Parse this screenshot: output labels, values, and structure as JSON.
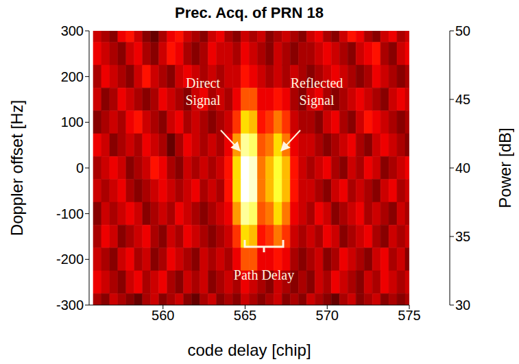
{
  "chart_data": {
    "type": "heatmap",
    "title": "Prec. Acq. of PRN 18",
    "x_label": "code delay [chip]",
    "y_label": "Doppler offset [Hz]",
    "xlim": [
      555.5,
      575
    ],
    "xticks": [
      560,
      565,
      570,
      575
    ],
    "ylim": [
      -300,
      300
    ],
    "yticks": [
      -300,
      -200,
      -100,
      0,
      100,
      200,
      300
    ],
    "x": [
      556,
      556.5,
      557,
      557.5,
      558,
      558.5,
      559,
      559.5,
      560,
      560.5,
      561,
      561.5,
      562,
      562.5,
      563,
      563.5,
      564,
      564.5,
      565,
      565.5,
      566,
      566.5,
      567,
      567.5,
      568,
      568.5,
      569,
      569.5,
      570,
      570.5,
      571,
      571.5,
      572,
      572.5,
      573,
      573.5,
      574,
      574.5,
      575
    ],
    "y": [
      300,
      250,
      200,
      150,
      100,
      50,
      0,
      -50,
      -100,
      -150,
      -200,
      -250,
      -300
    ],
    "values": [
      [
        36,
        35,
        34,
        37,
        38,
        36,
        34,
        33,
        35,
        37,
        38,
        36,
        35,
        34,
        36,
        37,
        35,
        34,
        36,
        35,
        36,
        34,
        35,
        36,
        35,
        34,
        36,
        37,
        35,
        34,
        36,
        38,
        37,
        35,
        34,
        36,
        37,
        35,
        36
      ],
      [
        37,
        36,
        35,
        34,
        36,
        37,
        35,
        34,
        36,
        38,
        37,
        35,
        34,
        35,
        37,
        36,
        36,
        35,
        37,
        36,
        35,
        34,
        36,
        35,
        34,
        35,
        35,
        36,
        37,
        36,
        35,
        34,
        36,
        37,
        38,
        35,
        34,
        36,
        37
      ],
      [
        35,
        37,
        36,
        35,
        34,
        36,
        38,
        36,
        35,
        34,
        36,
        37,
        36,
        35,
        36,
        35,
        36,
        36,
        38,
        37,
        36,
        35,
        36,
        35,
        36,
        35,
        34,
        35,
        36,
        37,
        36,
        35,
        34,
        35,
        37,
        36,
        35,
        34,
        35
      ],
      [
        36,
        34,
        35,
        37,
        36,
        35,
        34,
        35,
        37,
        36,
        35,
        34,
        36,
        37,
        35,
        36,
        35,
        37,
        40,
        40,
        37,
        37,
        38,
        37,
        35,
        34,
        36,
        37,
        35,
        34,
        35,
        36,
        37,
        36,
        35,
        34,
        36,
        37,
        36
      ],
      [
        34,
        35,
        36,
        35,
        37,
        38,
        36,
        35,
        34,
        36,
        37,
        35,
        36,
        35,
        34,
        35,
        36,
        39,
        44,
        43,
        38,
        39,
        41,
        39,
        36,
        35,
        35,
        34,
        36,
        37,
        35,
        34,
        36,
        38,
        37,
        36,
        35,
        34,
        35
      ],
      [
        37,
        36,
        34,
        35,
        36,
        35,
        37,
        36,
        35,
        33,
        35,
        37,
        36,
        35,
        36,
        35,
        37,
        42,
        48,
        47,
        40,
        41,
        44,
        41,
        37,
        36,
        36,
        35,
        34,
        35,
        36,
        37,
        35,
        34,
        36,
        37,
        36,
        35,
        34
      ],
      [
        35,
        36,
        37,
        36,
        34,
        35,
        36,
        38,
        37,
        35,
        34,
        36,
        35,
        36,
        35,
        36,
        38,
        44,
        50,
        49,
        41,
        43,
        46,
        43,
        38,
        36,
        35,
        36,
        37,
        35,
        34,
        36,
        35,
        37,
        36,
        34,
        35,
        36,
        37
      ],
      [
        36,
        35,
        36,
        37,
        35,
        34,
        35,
        36,
        37,
        36,
        35,
        36,
        37,
        35,
        36,
        35,
        38,
        44,
        50,
        49,
        41,
        43,
        46,
        43,
        38,
        36,
        36,
        35,
        34,
        36,
        37,
        35,
        36,
        35,
        34,
        36,
        37,
        35,
        36
      ],
      [
        34,
        36,
        35,
        36,
        37,
        36,
        34,
        35,
        36,
        35,
        37,
        36,
        35,
        34,
        35,
        36,
        37,
        42,
        48,
        47,
        40,
        41,
        44,
        41,
        37,
        36,
        35,
        37,
        36,
        34,
        35,
        36,
        37,
        35,
        36,
        35,
        34,
        36,
        35
      ],
      [
        35,
        37,
        36,
        34,
        35,
        36,
        37,
        35,
        34,
        36,
        35,
        37,
        36,
        35,
        34,
        35,
        36,
        39,
        44,
        43,
        38,
        39,
        41,
        39,
        36,
        35,
        36,
        35,
        37,
        36,
        34,
        35,
        36,
        37,
        35,
        34,
        36,
        35,
        36
      ],
      [
        36,
        35,
        34,
        36,
        37,
        35,
        36,
        34,
        35,
        37,
        36,
        35,
        34,
        36,
        35,
        36,
        35,
        37,
        40,
        40,
        37,
        37,
        38,
        37,
        35,
        34,
        35,
        36,
        34,
        35,
        37,
        36,
        35,
        34,
        36,
        37,
        35,
        36,
        34
      ],
      [
        37,
        36,
        35,
        34,
        36,
        37,
        35,
        36,
        37,
        35,
        34,
        36,
        35,
        36,
        34,
        35,
        36,
        35,
        37,
        36,
        35,
        34,
        36,
        35,
        34,
        35,
        34,
        36,
        35,
        37,
        36,
        35,
        34,
        36,
        35,
        37,
        36,
        35,
        36
      ],
      [
        35,
        34,
        36,
        35,
        34,
        33,
        35,
        36,
        34,
        35,
        36,
        34,
        33,
        35,
        36,
        34,
        35,
        34,
        36,
        35,
        34,
        35,
        36,
        34,
        35,
        34,
        36,
        35,
        34,
        33,
        35,
        36,
        34,
        35,
        36,
        34,
        35,
        34,
        35
      ]
    ],
    "colorbar": {
      "label": "Power [dB]",
      "range": [
        30,
        50
      ],
      "ticks": [
        30,
        35,
        40,
        45,
        50
      ]
    },
    "annotations": [
      "Direct Signal",
      "Reflected Signal",
      "Path Delay"
    ]
  }
}
